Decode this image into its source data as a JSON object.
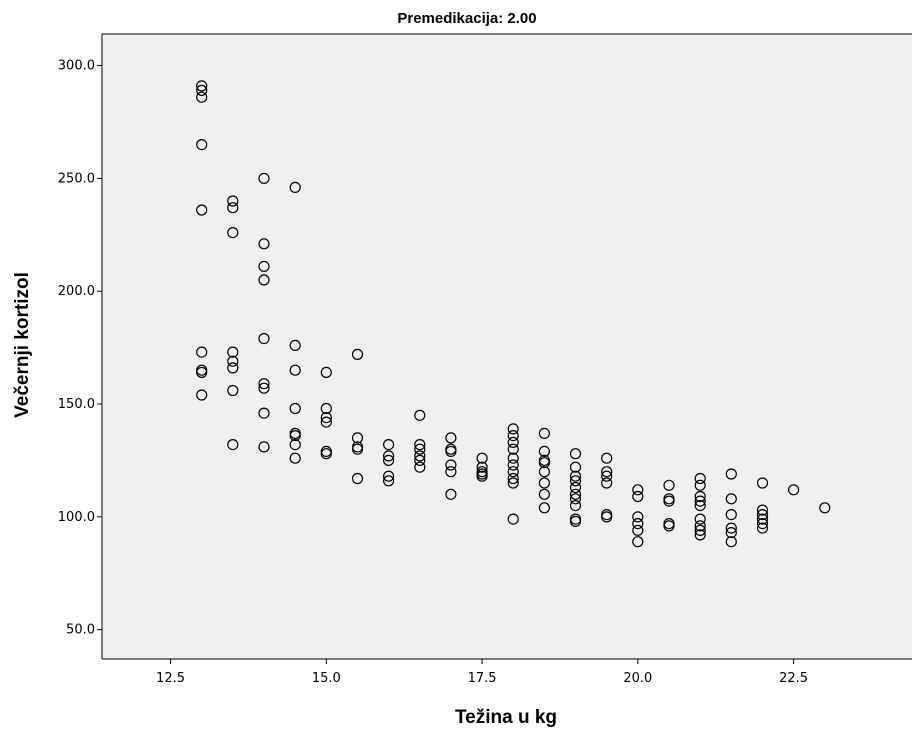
{
  "chart_data": {
    "type": "scatter",
    "title": "Premedikacija: 2.00",
    "xlabel": "Težina u kg",
    "ylabel": "Večernji kortizol",
    "xlim": [
      11.4,
      24.4
    ],
    "ylim": [
      37,
      314
    ],
    "x_ticks": [
      "12.5",
      "15.0",
      "17.5",
      "20.0",
      "22.5"
    ],
    "y_ticks": [
      "50.0",
      "100.0",
      "150.0",
      "200.0",
      "250.0",
      "300.0"
    ],
    "grid": false,
    "background_color": "#f0f0f0",
    "marker_color": "#000000",
    "points": [
      [
        13.0,
        291
      ],
      [
        13.0,
        289
      ],
      [
        13.0,
        286
      ],
      [
        13.0,
        265
      ],
      [
        13.0,
        236
      ],
      [
        13.0,
        173
      ],
      [
        13.0,
        165
      ],
      [
        13.0,
        164
      ],
      [
        13.0,
        154
      ],
      [
        13.5,
        240
      ],
      [
        13.5,
        237
      ],
      [
        13.5,
        226
      ],
      [
        13.5,
        173
      ],
      [
        13.5,
        169
      ],
      [
        13.5,
        166
      ],
      [
        13.5,
        156
      ],
      [
        13.5,
        132
      ],
      [
        14.0,
        250
      ],
      [
        14.0,
        221
      ],
      [
        14.0,
        211
      ],
      [
        14.0,
        205
      ],
      [
        14.0,
        179
      ],
      [
        14.0,
        159
      ],
      [
        14.0,
        157
      ],
      [
        14.0,
        146
      ],
      [
        14.0,
        131
      ],
      [
        14.5,
        246
      ],
      [
        14.5,
        176
      ],
      [
        14.5,
        165
      ],
      [
        14.5,
        148
      ],
      [
        14.5,
        137
      ],
      [
        14.5,
        136
      ],
      [
        14.5,
        132
      ],
      [
        14.5,
        126
      ],
      [
        15.0,
        164
      ],
      [
        15.0,
        148
      ],
      [
        15.0,
        144
      ],
      [
        15.0,
        142
      ],
      [
        15.0,
        129
      ],
      [
        15.0,
        128
      ],
      [
        15.5,
        172
      ],
      [
        15.5,
        135
      ],
      [
        15.5,
        131
      ],
      [
        15.5,
        130
      ],
      [
        15.5,
        117
      ],
      [
        16.0,
        132
      ],
      [
        16.0,
        127
      ],
      [
        16.0,
        125
      ],
      [
        16.0,
        118
      ],
      [
        16.0,
        116
      ],
      [
        16.5,
        145
      ],
      [
        16.5,
        132
      ],
      [
        16.5,
        130
      ],
      [
        16.5,
        127
      ],
      [
        16.5,
        125
      ],
      [
        16.5,
        122
      ],
      [
        17.0,
        135
      ],
      [
        17.0,
        130
      ],
      [
        17.0,
        129
      ],
      [
        17.0,
        123
      ],
      [
        17.0,
        120
      ],
      [
        17.0,
        110
      ],
      [
        17.5,
        126
      ],
      [
        17.5,
        122
      ],
      [
        17.5,
        120
      ],
      [
        17.5,
        119
      ],
      [
        17.5,
        118
      ],
      [
        18.0,
        139
      ],
      [
        18.0,
        136
      ],
      [
        18.0,
        133
      ],
      [
        18.0,
        130
      ],
      [
        18.0,
        126
      ],
      [
        18.0,
        123
      ],
      [
        18.0,
        120
      ],
      [
        18.0,
        117
      ],
      [
        18.0,
        115
      ],
      [
        18.0,
        99
      ],
      [
        18.5,
        137
      ],
      [
        18.5,
        129
      ],
      [
        18.5,
        125
      ],
      [
        18.5,
        124
      ],
      [
        18.5,
        120
      ],
      [
        18.5,
        115
      ],
      [
        18.5,
        110
      ],
      [
        18.5,
        104
      ],
      [
        19.0,
        128
      ],
      [
        19.0,
        122
      ],
      [
        19.0,
        118
      ],
      [
        19.0,
        116
      ],
      [
        19.0,
        113
      ],
      [
        19.0,
        110
      ],
      [
        19.0,
        108
      ],
      [
        19.0,
        105
      ],
      [
        19.0,
        99
      ],
      [
        19.0,
        98
      ],
      [
        19.5,
        126
      ],
      [
        19.5,
        120
      ],
      [
        19.5,
        118
      ],
      [
        19.5,
        115
      ],
      [
        19.5,
        101
      ],
      [
        19.5,
        100
      ],
      [
        20.0,
        112
      ],
      [
        20.0,
        109
      ],
      [
        20.0,
        100
      ],
      [
        20.0,
        97
      ],
      [
        20.0,
        94
      ],
      [
        20.0,
        89
      ],
      [
        20.5,
        114
      ],
      [
        20.5,
        108
      ],
      [
        20.5,
        107
      ],
      [
        20.5,
        97
      ],
      [
        20.5,
        96
      ],
      [
        21.0,
        117
      ],
      [
        21.0,
        114
      ],
      [
        21.0,
        109
      ],
      [
        21.0,
        107
      ],
      [
        21.0,
        105
      ],
      [
        21.0,
        99
      ],
      [
        21.0,
        96
      ],
      [
        21.0,
        94
      ],
      [
        21.0,
        92
      ],
      [
        21.5,
        119
      ],
      [
        21.5,
        108
      ],
      [
        21.5,
        101
      ],
      [
        21.5,
        95
      ],
      [
        21.5,
        93
      ],
      [
        21.5,
        89
      ],
      [
        22.0,
        115
      ],
      [
        22.0,
        103
      ],
      [
        22.0,
        101
      ],
      [
        22.0,
        99
      ],
      [
        22.0,
        97
      ],
      [
        22.0,
        95
      ],
      [
        22.5,
        112
      ],
      [
        23.0,
        104
      ]
    ]
  }
}
